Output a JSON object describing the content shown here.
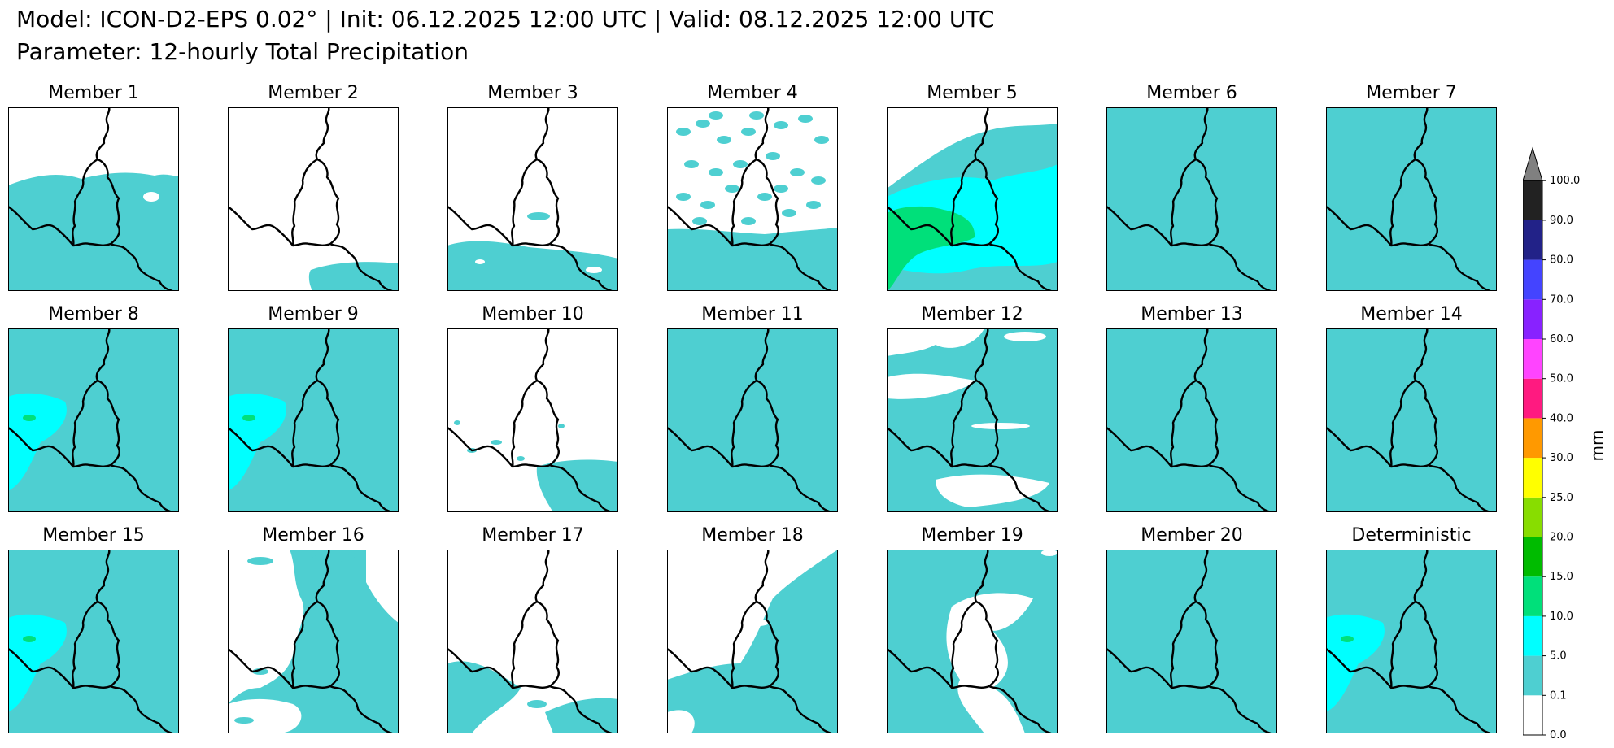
{
  "header": {
    "line1": "Model: ICON-D2-EPS 0.02° | Init: 06.12.2025 12:00 UTC | Valid: 08.12.2025 12:00 UTC",
    "line2": "Parameter: 12-hourly Total Precipitation"
  },
  "panels": [
    {
      "title": "Member 1",
      "coverage": "lower-half"
    },
    {
      "title": "Member 2",
      "coverage": "dry"
    },
    {
      "title": "Member 3",
      "coverage": "scattered-south"
    },
    {
      "title": "Member 4",
      "coverage": "scattered"
    },
    {
      "title": "Member 5",
      "coverage": "wet-heavy-sw"
    },
    {
      "title": "Member 6",
      "coverage": "full"
    },
    {
      "title": "Member 7",
      "coverage": "full"
    },
    {
      "title": "Member 8",
      "coverage": "full-moderate-west"
    },
    {
      "title": "Member 9",
      "coverage": "full-moderate-west"
    },
    {
      "title": "Member 10",
      "coverage": "dry-se"
    },
    {
      "title": "Member 11",
      "coverage": "full"
    },
    {
      "title": "Member 12",
      "coverage": "mostly-with-gaps"
    },
    {
      "title": "Member 13",
      "coverage": "full"
    },
    {
      "title": "Member 14",
      "coverage": "full"
    },
    {
      "title": "Member 15",
      "coverage": "full-moderate-west"
    },
    {
      "title": "Member 16",
      "coverage": "east-half"
    },
    {
      "title": "Member 17",
      "coverage": "south-patches"
    },
    {
      "title": "Member 18",
      "coverage": "south-east"
    },
    {
      "title": "Member 19",
      "coverage": "mostly-with-center-gap"
    },
    {
      "title": "Member 20",
      "coverage": "full"
    },
    {
      "title": "Deterministic",
      "coverage": "full-moderate-west"
    }
  ],
  "colorbar": {
    "unit": "mm",
    "ticks": [
      "0.0",
      "0.1",
      "5.0",
      "10.0",
      "15.0",
      "20.0",
      "25.0",
      "30.0",
      "40.0",
      "50.0",
      "60.0",
      "70.0",
      "80.0",
      "90.0",
      "100.0"
    ],
    "colors": [
      "#ffffff",
      "#4ecfd1",
      "#00ffff",
      "#00e07a",
      "#00bb00",
      "#88dd00",
      "#ffff00",
      "#ff9900",
      "#ff1a80",
      "#ff44ff",
      "#8822ff",
      "#4444ff",
      "#222288",
      "#222222"
    ],
    "extend_color": "#808080"
  },
  "colors": {
    "light": "#4ecfd1",
    "moderate": "#00ffff",
    "heavy": "#00e07a",
    "border": "#000000"
  }
}
